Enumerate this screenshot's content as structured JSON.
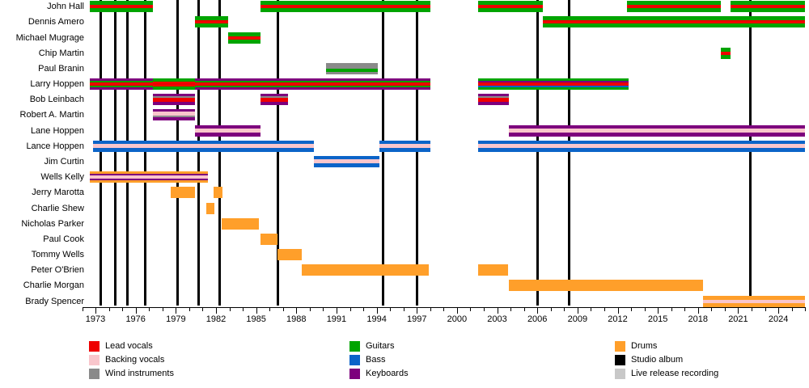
{
  "chart_data": {
    "type": "timeline",
    "title": "",
    "x_axis": {
      "start_year": 1972,
      "end_year": 2026,
      "minor_tick_step": 1,
      "major_label_start": 1973,
      "major_label_end": 2024,
      "major_label_step": 3,
      "tick_labels": [
        "1973",
        "1976",
        "1979",
        "1982",
        "1985",
        "1988",
        "1991",
        "1994",
        "1997",
        "2000",
        "2003",
        "2006",
        "2009",
        "2012",
        "2015",
        "2018",
        "2021",
        "2024"
      ]
    },
    "role_colors": {
      "lead_vocals": "#EE0000",
      "backing_vocals": "#F9C6CC",
      "wind_instruments": "#8A8A8A",
      "guitars": "#00A400",
      "bass": "#0B64C8",
      "keyboards": "#7D007D",
      "drums": "#FF9F2A",
      "studio_album": "#000000",
      "live_release": "#C8C8C8"
    },
    "studio_albums_years": [
      1973.4,
      1974.5,
      1975.4,
      1976.7,
      1979.1,
      1980.7,
      1982.3,
      1986.6,
      1994.5,
      1997.0,
      2006.0,
      2008.4,
      2021.9
    ],
    "live_release_years": [],
    "members": [
      {
        "name": "John Hall",
        "periods": [
          {
            "start": 1972.6,
            "end": 1977.3,
            "stripes": [
              [
                "guitars",
                5
              ],
              [
                "lead_vocals",
                4
              ],
              [
                "guitars",
                5
              ]
            ]
          },
          {
            "start": 1985.3,
            "end": 1998.0,
            "stripes": [
              [
                "guitars",
                5
              ],
              [
                "lead_vocals",
                4
              ],
              [
                "guitars",
                5
              ]
            ]
          },
          {
            "start": 2001.6,
            "end": 2006.4,
            "stripes": [
              [
                "guitars",
                5
              ],
              [
                "lead_vocals",
                4
              ],
              [
                "guitars",
                5
              ]
            ]
          },
          {
            "start": 2012.7,
            "end": 2019.7,
            "stripes": [
              [
                "guitars",
                5
              ],
              [
                "lead_vocals",
                4
              ],
              [
                "guitars",
                5
              ]
            ]
          },
          {
            "start": 2020.4,
            "end": 2026.0,
            "stripes": [
              [
                "guitars",
                5
              ],
              [
                "lead_vocals",
                4
              ],
              [
                "guitars",
                5
              ]
            ]
          }
        ]
      },
      {
        "name": "Dennis Amero",
        "periods": [
          {
            "start": 1980.4,
            "end": 1982.9,
            "stripes": [
              [
                "guitars",
                5
              ],
              [
                "lead_vocals",
                4
              ],
              [
                "guitars",
                5
              ]
            ]
          },
          {
            "start": 2006.4,
            "end": 2026.0,
            "stripes": [
              [
                "guitars",
                5
              ],
              [
                "lead_vocals",
                4
              ],
              [
                "guitars",
                5
              ]
            ]
          }
        ]
      },
      {
        "name": "Michael Mugrage",
        "periods": [
          {
            "start": 1982.9,
            "end": 1985.3,
            "stripes": [
              [
                "guitars",
                5
              ],
              [
                "lead_vocals",
                4
              ],
              [
                "guitars",
                5
              ]
            ]
          }
        ]
      },
      {
        "name": "Chip Martin",
        "periods": [
          {
            "start": 2019.7,
            "end": 2020.4,
            "stripes": [
              [
                "guitars",
                5
              ],
              [
                "lead_vocals",
                4
              ],
              [
                "guitars",
                5
              ]
            ]
          }
        ]
      },
      {
        "name": "Paul Branin",
        "periods": [
          {
            "start": 1990.2,
            "end": 1994.1,
            "stripes": [
              [
                "wind_instruments",
                7
              ],
              [
                "guitars",
                4
              ],
              [
                "wind_instruments",
                3
              ]
            ]
          }
        ]
      },
      {
        "name": "Larry Hoppen",
        "periods": [
          {
            "start": 1972.6,
            "end": 1977.3,
            "stripes": [
              [
                "keyboards",
                3
              ],
              [
                "guitars",
                2
              ],
              [
                "lead_vocals",
                4
              ],
              [
                "guitars",
                2
              ],
              [
                "keyboards",
                3
              ]
            ]
          },
          {
            "start": 1977.3,
            "end": 1980.4,
            "stripes": [
              [
                "guitars",
                4
              ],
              [
                "lead_vocals",
                6
              ],
              [
                "guitars",
                4
              ]
            ]
          },
          {
            "start": 1980.4,
            "end": 1998.0,
            "stripes": [
              [
                "keyboards",
                3
              ],
              [
                "guitars",
                2
              ],
              [
                "lead_vocals",
                4
              ],
              [
                "guitars",
                2
              ],
              [
                "keyboards",
                3
              ]
            ]
          },
          {
            "start": 2001.6,
            "end": 2012.8,
            "stripes": [
              [
                "guitars",
                3
              ],
              [
                "keyboards",
                2
              ],
              [
                "lead_vocals",
                4
              ],
              [
                "bass",
                2
              ],
              [
                "guitars",
                3
              ]
            ]
          }
        ]
      },
      {
        "name": "Bob Leinbach",
        "periods": [
          {
            "start": 1977.3,
            "end": 1980.4,
            "stripes": [
              [
                "keyboards",
                3
              ],
              [
                "wind_instruments",
                2
              ],
              [
                "lead_vocals",
                5
              ],
              [
                "keyboards",
                4
              ]
            ]
          },
          {
            "start": 1985.3,
            "end": 1987.4,
            "stripes": [
              [
                "keyboards",
                3
              ],
              [
                "wind_instruments",
                2
              ],
              [
                "lead_vocals",
                5
              ],
              [
                "keyboards",
                4
              ]
            ]
          },
          {
            "start": 2001.6,
            "end": 2003.9,
            "stripes": [
              [
                "keyboards",
                3
              ],
              [
                "wind_instruments",
                2
              ],
              [
                "lead_vocals",
                5
              ],
              [
                "keyboards",
                4
              ]
            ]
          }
        ]
      },
      {
        "name": "Robert A. Martin",
        "periods": [
          {
            "start": 1977.3,
            "end": 1980.4,
            "stripes": [
              [
                "keyboards",
                3
              ],
              [
                "backing_vocals",
                5
              ],
              [
                "wind_instruments",
                2
              ],
              [
                "keyboards",
                4
              ]
            ]
          }
        ]
      },
      {
        "name": "Lane Hoppen",
        "periods": [
          {
            "start": 1980.4,
            "end": 1985.3,
            "stripes": [
              [
                "keyboards",
                4
              ],
              [
                "backing_vocals",
                5
              ],
              [
                "keyboards",
                5
              ]
            ]
          },
          {
            "start": 2003.9,
            "end": 2026.0,
            "stripes": [
              [
                "keyboards",
                4
              ],
              [
                "backing_vocals",
                5
              ],
              [
                "keyboards",
                5
              ]
            ]
          }
        ]
      },
      {
        "name": "Lance Hoppen",
        "periods": [
          {
            "start": 1972.8,
            "end": 1989.3,
            "stripes": [
              [
                "bass",
                4
              ],
              [
                "backing_vocals",
                5
              ],
              [
                "bass",
                5
              ]
            ]
          },
          {
            "start": 1994.2,
            "end": 1998.0,
            "stripes": [
              [
                "bass",
                4
              ],
              [
                "backing_vocals",
                5
              ],
              [
                "bass",
                5
              ]
            ]
          },
          {
            "start": 2001.6,
            "end": 2026.0,
            "stripes": [
              [
                "bass",
                4
              ],
              [
                "backing_vocals",
                5
              ],
              [
                "bass",
                5
              ]
            ]
          }
        ]
      },
      {
        "name": "Jim Curtin",
        "periods": [
          {
            "start": 1989.3,
            "end": 1994.2,
            "stripes": [
              [
                "bass",
                4
              ],
              [
                "backing_vocals",
                5
              ],
              [
                "bass",
                5
              ]
            ]
          }
        ]
      },
      {
        "name": "Wells Kelly",
        "periods": [
          {
            "start": 1972.6,
            "end": 1981.4,
            "stripes": [
              [
                "drums",
                3
              ],
              [
                "keyboards",
                2
              ],
              [
                "backing_vocals",
                4
              ],
              [
                "keyboards",
                2
              ],
              [
                "drums",
                3
              ]
            ]
          }
        ]
      },
      {
        "name": "Jerry Marotta",
        "periods": [
          {
            "start": 1978.6,
            "end": 1980.4,
            "stripes": [
              [
                "drums",
                14
              ]
            ]
          },
          {
            "start": 1981.8,
            "end": 1982.5,
            "stripes": [
              [
                "drums",
                14
              ]
            ]
          }
        ]
      },
      {
        "name": "Charlie Shew",
        "periods": [
          {
            "start": 1981.3,
            "end": 1981.9,
            "stripes": [
              [
                "drums",
                14
              ]
            ]
          }
        ]
      },
      {
        "name": "Nicholas Parker",
        "periods": [
          {
            "start": 1982.4,
            "end": 1985.2,
            "stripes": [
              [
                "drums",
                14
              ]
            ]
          }
        ]
      },
      {
        "name": "Paul Cook",
        "periods": [
          {
            "start": 1985.3,
            "end": 1986.6,
            "stripes": [
              [
                "drums",
                14
              ]
            ]
          }
        ]
      },
      {
        "name": "Tommy Wells",
        "periods": [
          {
            "start": 1986.6,
            "end": 1988.4,
            "stripes": [
              [
                "drums",
                14
              ]
            ]
          }
        ]
      },
      {
        "name": "Peter O'Brien",
        "periods": [
          {
            "start": 1988.4,
            "end": 1997.9,
            "stripes": [
              [
                "drums",
                14
              ]
            ]
          },
          {
            "start": 2001.6,
            "end": 2003.8,
            "stripes": [
              [
                "drums",
                14
              ]
            ]
          }
        ]
      },
      {
        "name": "Charlie Morgan",
        "periods": [
          {
            "start": 2003.9,
            "end": 2018.4,
            "stripes": [
              [
                "drums",
                14
              ]
            ]
          }
        ]
      },
      {
        "name": "Brady Spencer",
        "periods": [
          {
            "start": 2018.4,
            "end": 2026.0,
            "stripes": [
              [
                "drums",
                5
              ],
              [
                "backing_vocals",
                4
              ],
              [
                "drums",
                5
              ]
            ]
          }
        ]
      }
    ],
    "legend": {
      "columns": [
        [
          {
            "label": "Lead vocals",
            "role": "lead_vocals"
          },
          {
            "label": "Backing vocals",
            "role": "backing_vocals"
          },
          {
            "label": "Wind instruments",
            "role": "wind_instruments"
          }
        ],
        [
          {
            "label": "Guitars",
            "role": "guitars"
          },
          {
            "label": "Bass",
            "role": "bass"
          },
          {
            "label": "Keyboards",
            "role": "keyboards"
          }
        ],
        [
          {
            "label": "Drums",
            "role": "drums"
          },
          {
            "label": "Studio album",
            "role": "studio_album"
          },
          {
            "label": "Live release recording",
            "role": "live_release"
          }
        ]
      ]
    }
  }
}
